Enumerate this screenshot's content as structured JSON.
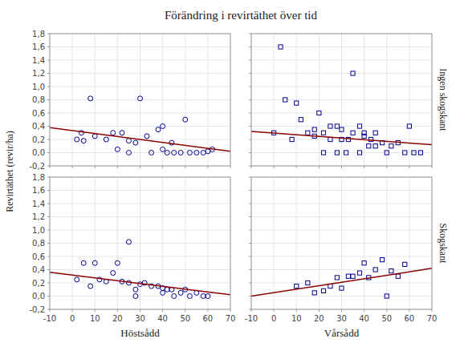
{
  "chart_data": [
    {
      "type": "scatter",
      "title": "Förändring i revirtäthet över tid",
      "ylabel": "Revirtäthet (revir/ha)",
      "xlim": [
        -10,
        70
      ],
      "ylim": [
        -0.2,
        1.8
      ],
      "xticks": [
        -10,
        0,
        10,
        20,
        30,
        40,
        50,
        60,
        70
      ],
      "yticks": [
        {
          "value": -0.2,
          "label": "-0,2"
        },
        {
          "value": 0.0,
          "label": "0,0"
        },
        {
          "value": 0.2,
          "label": "0,2"
        },
        {
          "value": 0.4,
          "label": "0,4"
        },
        {
          "value": 0.6,
          "label": "0,6"
        },
        {
          "value": 0.8,
          "label": "0,8"
        },
        {
          "value": 1.0,
          "label": "1,0"
        },
        {
          "value": 1.2,
          "label": "1,2"
        },
        {
          "value": 1.4,
          "label": "1,4"
        },
        {
          "value": 1.6,
          "label": "1,6"
        },
        {
          "value": 1.8,
          "label": "1,8"
        }
      ],
      "grid": true,
      "tick_labels": "y",
      "series": [
        {
          "type": "scatter",
          "marker": "circle",
          "color": "#00008B",
          "x": [
            2,
            4,
            5,
            8,
            10,
            15,
            18,
            20,
            22,
            25,
            25,
            28,
            30,
            33,
            35,
            38,
            40,
            40,
            42,
            44,
            45,
            48,
            50,
            52,
            55,
            58,
            60,
            62
          ],
          "values": [
            0.2,
            0.3,
            0.18,
            0.82,
            0.25,
            0.2,
            0.3,
            0.05,
            0.3,
            0.18,
            0.0,
            0.15,
            0.82,
            0.25,
            0.0,
            0.35,
            0.4,
            0.05,
            0.0,
            0.15,
            0.0,
            0.0,
            0.5,
            0.0,
            0.0,
            0.0,
            0.02,
            0.05
          ]
        },
        {
          "type": "line",
          "color": "#8B0000",
          "x": [
            -10,
            70
          ],
          "values": [
            0.38,
            0.02
          ]
        }
      ]
    },
    {
      "type": "scatter",
      "annotations": [
        "Ingen skogskant"
      ],
      "xlim": [
        -10,
        70
      ],
      "ylim": [
        -0.2,
        1.8
      ],
      "xticks": [
        -10,
        0,
        10,
        20,
        30,
        40,
        50,
        60,
        70
      ],
      "yticks": [
        {
          "value": -0.2,
          "label": "-0,2"
        },
        {
          "value": 0.0,
          "label": "0,0"
        },
        {
          "value": 0.2,
          "label": "0,2"
        },
        {
          "value": 0.4,
          "label": "0,4"
        },
        {
          "value": 0.6,
          "label": "0,6"
        },
        {
          "value": 0.8,
          "label": "0,8"
        },
        {
          "value": 1.0,
          "label": "1,0"
        },
        {
          "value": 1.2,
          "label": "1,2"
        },
        {
          "value": 1.4,
          "label": "1,4"
        },
        {
          "value": 1.6,
          "label": "1,6"
        },
        {
          "value": 1.8,
          "label": "1,8"
        }
      ],
      "grid": true,
      "tick_labels": false,
      "series": [
        {
          "type": "scatter",
          "marker": "square",
          "color": "#00008B",
          "x": [
            0,
            3,
            5,
            8,
            10,
            12,
            15,
            18,
            18,
            20,
            22,
            22,
            25,
            25,
            28,
            28,
            30,
            30,
            32,
            33,
            35,
            35,
            38,
            38,
            40,
            40,
            42,
            43,
            45,
            45,
            48,
            50,
            52,
            55,
            58,
            60,
            62,
            65
          ],
          "values": [
            0.3,
            1.6,
            0.8,
            0.2,
            0.75,
            0.5,
            0.3,
            0.25,
            0.35,
            0.6,
            0.3,
            0.0,
            0.4,
            0.2,
            0.4,
            0.0,
            0.2,
            0.35,
            0.0,
            0.2,
            1.2,
            0.3,
            0.4,
            0.0,
            0.3,
            0.25,
            0.1,
            0.2,
            0.3,
            0.1,
            0.15,
            0.0,
            0.1,
            0.15,
            0.0,
            0.4,
            0.0,
            0.0
          ]
        },
        {
          "type": "line",
          "color": "#8B0000",
          "x": [
            -10,
            70
          ],
          "values": [
            0.32,
            0.12
          ]
        }
      ]
    },
    {
      "type": "scatter",
      "xlabel": "Höstsådd",
      "xlim": [
        -10,
        70
      ],
      "ylim": [
        -0.2,
        1.8
      ],
      "xticks": [
        -10,
        0,
        10,
        20,
        30,
        40,
        50,
        60,
        70
      ],
      "yticks": [
        {
          "value": -0.2,
          "label": "-0,2"
        },
        {
          "value": 0.0,
          "label": "0,0"
        },
        {
          "value": 0.2,
          "label": "0,2"
        },
        {
          "value": 0.4,
          "label": "0,4"
        },
        {
          "value": 0.6,
          "label": "0,6"
        },
        {
          "value": 0.8,
          "label": "0,8"
        },
        {
          "value": 1.0,
          "label": "1,0"
        },
        {
          "value": 1.2,
          "label": "1,2"
        },
        {
          "value": 1.4,
          "label": "1,4"
        },
        {
          "value": 1.6,
          "label": "1,6"
        },
        {
          "value": 1.8,
          "label": "1,8"
        }
      ],
      "grid": true,
      "series": [
        {
          "type": "scatter",
          "marker": "circle",
          "color": "#00008B",
          "x": [
            2,
            5,
            8,
            10,
            12,
            15,
            18,
            20,
            22,
            25,
            25,
            28,
            28,
            30,
            32,
            35,
            38,
            40,
            40,
            42,
            44,
            45,
            48,
            50,
            52,
            55,
            58,
            60
          ],
          "values": [
            0.25,
            0.5,
            0.15,
            0.5,
            0.25,
            0.22,
            0.35,
            0.5,
            0.22,
            0.82,
            0.2,
            0.1,
            0.0,
            0.18,
            0.2,
            0.15,
            0.15,
            0.12,
            0.05,
            0.1,
            0.1,
            0.0,
            0.05,
            0.1,
            0.0,
            0.05,
            0.0,
            0.0
          ]
        },
        {
          "type": "line",
          "color": "#8B0000",
          "x": [
            -10,
            70
          ],
          "values": [
            0.36,
            0.02
          ]
        }
      ]
    },
    {
      "type": "scatter",
      "xlabel": "Vårsådd",
      "annotations": [
        "Skogskant"
      ],
      "xlim": [
        -10,
        70
      ],
      "ylim": [
        -0.2,
        1.8
      ],
      "xticks": [
        -10,
        0,
        10,
        20,
        30,
        40,
        50,
        60,
        70
      ],
      "yticks": [
        {
          "value": -0.2,
          "label": "-0,2"
        },
        {
          "value": 0.0,
          "label": "0,0"
        },
        {
          "value": 0.2,
          "label": "0,2"
        },
        {
          "value": 0.4,
          "label": "0,4"
        },
        {
          "value": 0.6,
          "label": "0,6"
        },
        {
          "value": 0.8,
          "label": "0,8"
        },
        {
          "value": 1.0,
          "label": "1,0"
        },
        {
          "value": 1.2,
          "label": "1,2"
        },
        {
          "value": 1.4,
          "label": "1,4"
        },
        {
          "value": 1.6,
          "label": "1,6"
        },
        {
          "value": 1.8,
          "label": "1,8"
        }
      ],
      "grid": true,
      "tick_labels": "x",
      "series": [
        {
          "type": "scatter",
          "marker": "square",
          "color": "#00008B",
          "x": [
            10,
            15,
            18,
            22,
            25,
            28,
            30,
            33,
            35,
            38,
            40,
            42,
            45,
            48,
            50,
            52,
            55,
            58
          ],
          "values": [
            0.15,
            0.2,
            0.05,
            0.08,
            0.15,
            0.28,
            0.12,
            0.3,
            0.3,
            0.35,
            0.5,
            0.28,
            0.4,
            0.55,
            0.0,
            0.38,
            0.3,
            0.48
          ]
        },
        {
          "type": "line",
          "color": "#8B0000",
          "x": [
            -10,
            70
          ],
          "values": [
            0.0,
            0.42
          ]
        }
      ]
    }
  ]
}
